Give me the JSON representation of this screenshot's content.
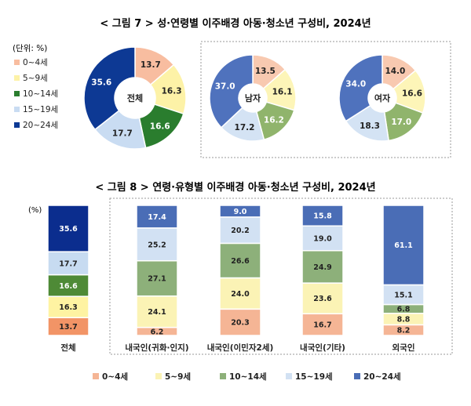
{
  "fig7": {
    "title": "< 그림 7 > 성·연령별 이주배경 아동·청소년 구성비, 2024년",
    "unit_label": "(단위: %)",
    "legend": [
      "0~4세",
      "5~9세",
      "10~14세",
      "15~19세",
      "20~24세"
    ]
  },
  "fig8": {
    "title": "< 그림 8 > 연령·유형별 이주배경 아동·청소년 구성비, 2024년",
    "unit_label": "(%)",
    "legend": [
      "0~4세",
      "5~9세",
      "10~14세",
      "15~19세",
      "20~24세"
    ]
  },
  "colors": {
    "fig7": [
      "#f8bda0",
      "#fdf2a7",
      "#2a7d2e",
      "#c9dcf2",
      "#0d3994"
    ],
    "fig7_gender": [
      "#f8c9b0",
      "#fdf5b8",
      "#90b46c",
      "#d4e3f4",
      "#4f72bd"
    ],
    "fig8": [
      "#f5b595",
      "#fbf3b5",
      "#8db07a",
      "#d2e1f3",
      "#4a6db6"
    ],
    "fig8_total": [
      "#f29466",
      "#fef3a2",
      "#4e8a36",
      "#c7dbf1",
      "#0b2d8e"
    ]
  },
  "chart_data": [
    {
      "type": "pie",
      "title": "< 그림 7 > 성·연령별 이주배경 아동·청소년 구성비, 2024년",
      "categories": [
        "0~4세",
        "5~9세",
        "10~14세",
        "15~19세",
        "20~24세"
      ],
      "series": [
        {
          "name": "전체",
          "values": [
            13.7,
            16.3,
            16.6,
            17.7,
            35.6
          ]
        },
        {
          "name": "남자",
          "values": [
            13.5,
            16.1,
            16.2,
            17.2,
            37.0
          ]
        },
        {
          "name": "여자",
          "values": [
            14.0,
            16.6,
            17.0,
            18.3,
            34.0
          ]
        }
      ]
    },
    {
      "type": "bar",
      "stacked": true,
      "title": "< 그림 8 > 연령·유형별 이주배경 아동·청소년 구성비, 2024년",
      "ylabel": "(%)",
      "categories": [
        "전체",
        "내국인(귀화·인지)",
        "내국인(이민자2세)",
        "내국인(기타)",
        "외국인"
      ],
      "series": [
        {
          "name": "0~4세",
          "values": [
            13.7,
            6.2,
            20.3,
            16.7,
            8.2
          ]
        },
        {
          "name": "5~9세",
          "values": [
            16.3,
            24.1,
            24.0,
            23.6,
            8.8
          ]
        },
        {
          "name": "10~14세",
          "values": [
            16.6,
            27.1,
            26.6,
            24.9,
            6.8
          ]
        },
        {
          "name": "15~19세",
          "values": [
            17.7,
            25.2,
            20.2,
            19.0,
            15.1
          ]
        },
        {
          "name": "20~24세",
          "values": [
            35.6,
            17.4,
            9.0,
            15.8,
            61.1
          ]
        }
      ],
      "ylim": [
        0,
        100
      ]
    }
  ]
}
